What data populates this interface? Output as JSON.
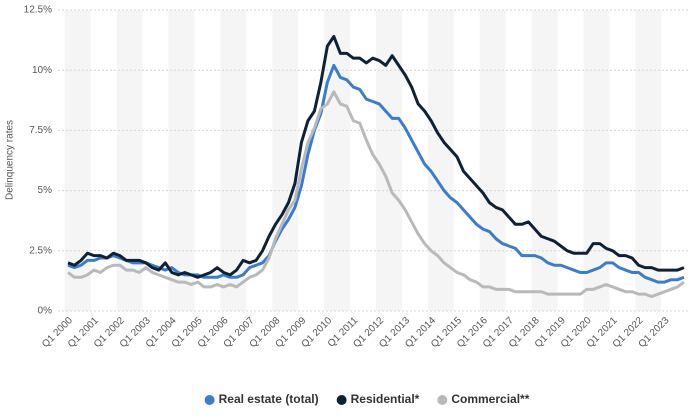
{
  "chart_data": {
    "type": "line",
    "y_label": "Delinquency rates",
    "categories": [
      "Q1 2000",
      null,
      null,
      null,
      "Q1 2001",
      null,
      null,
      null,
      "Q1 2002",
      null,
      null,
      null,
      "Q1 2003",
      null,
      null,
      null,
      "Q1 2004",
      null,
      null,
      null,
      "Q1 2005",
      null,
      null,
      null,
      "Q1 2006",
      null,
      null,
      null,
      "Q1 2007",
      null,
      null,
      null,
      "Q1 2008",
      null,
      null,
      null,
      "Q1 2009",
      null,
      null,
      null,
      "Q1 2010",
      null,
      null,
      null,
      "Q1 2011",
      null,
      null,
      null,
      "Q1 2012",
      null,
      null,
      null,
      "Q1 2013",
      null,
      null,
      null,
      "Q1 2014",
      null,
      null,
      null,
      "Q1 2015",
      null,
      null,
      null,
      "Q1 2016",
      null,
      null,
      null,
      "Q1 2017",
      null,
      null,
      null,
      "Q1 2018",
      null,
      null,
      null,
      "Q1 2019",
      null,
      null,
      null,
      "Q1 2020",
      null,
      null,
      null,
      "Q1 2021",
      null,
      null,
      null,
      "Q1 2022",
      null,
      null,
      null,
      "Q1 2023",
      null,
      null,
      null
    ],
    "series": [
      {
        "name": "Real estate (total)",
        "color": "#3a7dd0",
        "values": [
          1.9,
          1.8,
          1.9,
          2.1,
          2.1,
          2.2,
          2.2,
          2.3,
          2.2,
          2.1,
          2.0,
          2.0,
          2.0,
          1.9,
          1.8,
          1.7,
          1.8,
          1.6,
          1.5,
          1.5,
          1.5,
          1.4,
          1.4,
          1.4,
          1.5,
          1.4,
          1.4,
          1.5,
          1.8,
          1.9,
          2.0,
          2.3,
          2.9,
          3.4,
          3.8,
          4.3,
          5.2,
          6.5,
          7.5,
          8.2,
          9.5,
          10.2,
          9.7,
          9.6,
          9.3,
          9.2,
          8.8,
          8.7,
          8.6,
          8.3,
          8.0,
          8.0,
          7.6,
          7.1,
          6.6,
          6.1,
          5.8,
          5.4,
          5.0,
          4.7,
          4.5,
          4.2,
          3.9,
          3.6,
          3.4,
          3.3,
          3.0,
          2.8,
          2.7,
          2.6,
          2.3,
          2.3,
          2.3,
          2.2,
          2.0,
          1.9,
          1.9,
          1.8,
          1.7,
          1.6,
          1.6,
          1.7,
          1.8,
          2.0,
          2.0,
          1.8,
          1.7,
          1.6,
          1.6,
          1.4,
          1.3,
          1.2,
          1.2,
          1.3,
          1.3,
          1.4
        ]
      },
      {
        "name": "Residential*",
        "color": "#0f2235",
        "values": [
          2.0,
          1.9,
          2.1,
          2.4,
          2.3,
          2.3,
          2.2,
          2.4,
          2.3,
          2.1,
          2.1,
          2.1,
          2.0,
          1.8,
          1.7,
          2.0,
          1.6,
          1.5,
          1.6,
          1.5,
          1.4,
          1.5,
          1.6,
          1.8,
          1.6,
          1.5,
          1.7,
          2.1,
          2.0,
          2.1,
          2.5,
          3.1,
          3.6,
          4.0,
          4.5,
          5.3,
          7.0,
          7.9,
          8.3,
          9.5,
          11.0,
          11.4,
          10.7,
          10.7,
          10.5,
          10.5,
          10.3,
          10.5,
          10.4,
          10.2,
          10.6,
          10.2,
          9.8,
          9.3,
          8.6,
          8.3,
          7.9,
          7.4,
          7.0,
          6.7,
          6.4,
          5.8,
          5.5,
          5.2,
          4.9,
          4.5,
          4.3,
          4.2,
          3.9,
          3.6,
          3.6,
          3.7,
          3.4,
          3.1,
          3.0,
          2.9,
          2.7,
          2.5,
          2.4,
          2.4,
          2.4,
          2.8,
          2.8,
          2.6,
          2.5,
          2.3,
          2.3,
          2.2,
          1.9,
          1.8,
          1.8,
          1.7,
          1.7,
          1.7,
          1.7,
          1.8
        ]
      },
      {
        "name": "Commercial**",
        "color": "#b9b9b9",
        "values": [
          1.6,
          1.4,
          1.4,
          1.5,
          1.7,
          1.6,
          1.8,
          1.9,
          1.9,
          1.7,
          1.7,
          1.6,
          1.8,
          1.6,
          1.5,
          1.4,
          1.3,
          1.2,
          1.2,
          1.1,
          1.2,
          1.0,
          1.0,
          1.1,
          1.0,
          1.1,
          1.0,
          1.2,
          1.4,
          1.5,
          1.7,
          2.2,
          3.0,
          3.6,
          4.2,
          4.6,
          5.9,
          7.0,
          7.6,
          8.4,
          8.6,
          9.1,
          8.6,
          8.5,
          7.9,
          7.8,
          7.1,
          6.5,
          6.1,
          5.6,
          4.9,
          4.6,
          4.2,
          3.7,
          3.2,
          2.8,
          2.5,
          2.3,
          2.0,
          1.8,
          1.6,
          1.5,
          1.3,
          1.2,
          1.0,
          1.0,
          0.9,
          0.9,
          0.9,
          0.8,
          0.8,
          0.8,
          0.8,
          0.8,
          0.7,
          0.7,
          0.7,
          0.7,
          0.7,
          0.7,
          0.9,
          0.9,
          1.0,
          1.1,
          1.0,
          0.9,
          0.8,
          0.8,
          0.7,
          0.7,
          0.6,
          0.7,
          0.8,
          0.9,
          1.0,
          1.2
        ]
      }
    ],
    "ylim": [
      0,
      12.5
    ],
    "yticks": [
      {
        "value": 0,
        "label": "0%"
      },
      {
        "value": 2.5,
        "label": "2.5%"
      },
      {
        "value": 5,
        "label": "5%"
      },
      {
        "value": 7.5,
        "label": "7.5%"
      },
      {
        "value": 10,
        "label": "10%"
      },
      {
        "value": 12.5,
        "label": "12.5%"
      }
    ],
    "grid": true,
    "legend": "bottom"
  }
}
